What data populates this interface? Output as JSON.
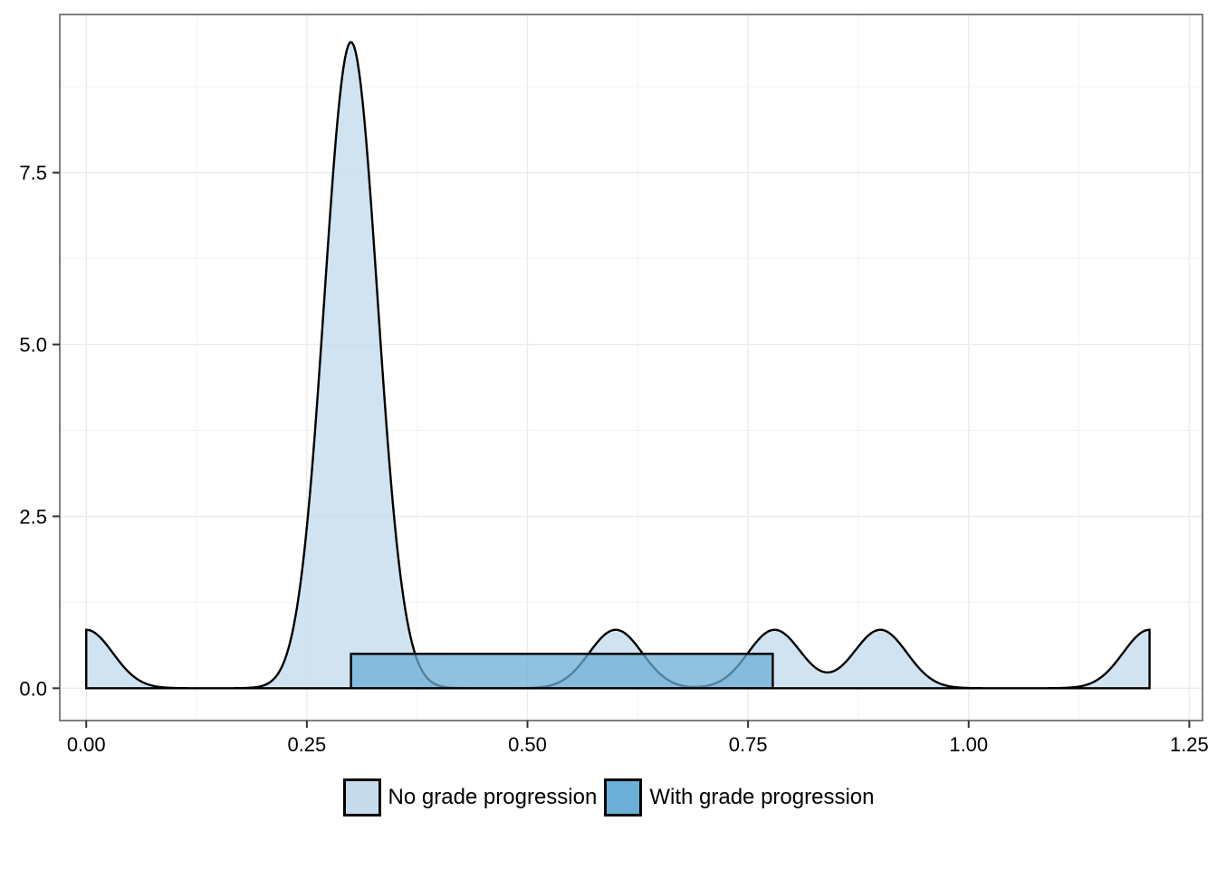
{
  "chart_data": {
    "type": "area",
    "title": "",
    "xlabel": "",
    "ylabel": "",
    "xlim": [
      -0.03,
      1.265
    ],
    "ylim": [
      -0.47,
      9.8
    ],
    "x_ticks": [
      0,
      0.25,
      0.5,
      0.75,
      1.0,
      1.25
    ],
    "x_tick_labels": [
      "0.00",
      "0.25",
      "0.50",
      "0.75",
      "1.00",
      "1.25"
    ],
    "y_ticks": [
      0,
      2.5,
      5.0,
      7.5
    ],
    "y_tick_labels": [
      "0.0",
      "2.5",
      "5.0",
      "7.5"
    ],
    "grid": true,
    "legend_position": "bottom",
    "series": [
      {
        "name": "No grade progression",
        "color": "#c6dcec",
        "kind": "density",
        "x_range": [
          0.0,
          1.205
        ],
        "components": [
          {
            "center": 0.0,
            "peak": 0.85,
            "sd": 0.03
          },
          {
            "center": 0.3,
            "peak": 9.4,
            "sd": 0.03
          },
          {
            "center": 0.6,
            "peak": 0.85,
            "sd": 0.03
          },
          {
            "center": 0.78,
            "peak": 0.85,
            "sd": 0.03
          },
          {
            "center": 0.9,
            "peak": 0.85,
            "sd": 0.03
          },
          {
            "center": 1.205,
            "peak": 0.85,
            "sd": 0.03
          }
        ]
      },
      {
        "name": "With grade progression",
        "color": "#6baed6",
        "kind": "uniform",
        "x_range": [
          0.3,
          0.778
        ],
        "value": 0.5
      }
    ]
  },
  "legend": {
    "items": [
      {
        "label": "No grade progression",
        "color": "#c6dcec"
      },
      {
        "label": "With grade progression",
        "color": "#6baed6"
      }
    ]
  }
}
